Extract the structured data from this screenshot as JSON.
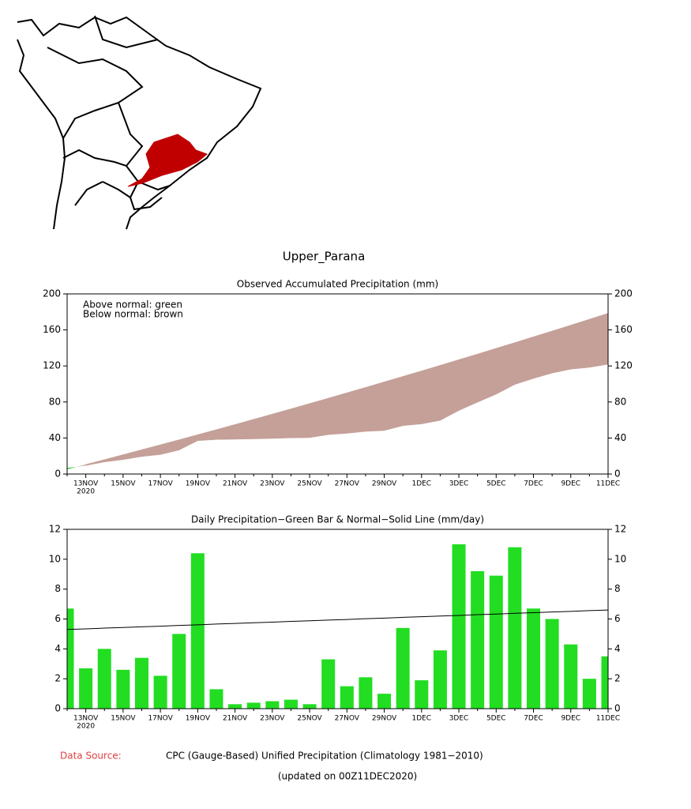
{
  "page_title": "Upper_Parana",
  "footer": {
    "source_label": "Data Source:",
    "source": "CPC (Gauge-Based) Unified Precipitation (Climatology 1981−2010)",
    "updated": "(updated on 00Z11DEC2020)"
  },
  "chart_data": [
    {
      "type": "area",
      "title": "Observed Accumulated Precipitation (mm)",
      "annotations": [
        "Above normal: green",
        "Below normal: brown"
      ],
      "categories": [
        null,
        "13NOV",
        null,
        "15NOV",
        null,
        "17NOV",
        null,
        "19NOV",
        null,
        "21NOV",
        null,
        "23NOV",
        null,
        "25NOV",
        null,
        "27NOV",
        null,
        "29NOV",
        null,
        "1DEC",
        null,
        "3DEC",
        null,
        "5DEC",
        null,
        "7DEC",
        null,
        "9DEC",
        null,
        "11DEC"
      ],
      "x_sublabel": "2020",
      "values": [
        6.7,
        9.4,
        13.4,
        16.0,
        19.4,
        21.6,
        26.6,
        37.0,
        38.3,
        38.6,
        39.0,
        39.5,
        40.1,
        40.4,
        43.7,
        45.2,
        47.3,
        48.3,
        53.7,
        55.6,
        59.5,
        70.5,
        79.7,
        88.6,
        99.4,
        106.1,
        112.1,
        116.4,
        118.4,
        121.9
      ],
      "normal": [
        5.3,
        10.6,
        16.0,
        21.5,
        27.0,
        32.5,
        38.0,
        43.7,
        49.3,
        55.0,
        60.8,
        66.6,
        72.4,
        78.3,
        84.2,
        90.2,
        96.2,
        102.3,
        108.4,
        114.5,
        120.7,
        127.0,
        133.2,
        139.6,
        145.9,
        152.4,
        158.8,
        165.3,
        171.9,
        178.5
      ],
      "above_color": "#22cc22",
      "below_color": "#c4a098",
      "ylim": [
        0,
        200
      ],
      "yticks": [
        0,
        40,
        80,
        120,
        160,
        200
      ]
    },
    {
      "type": "bar",
      "title": "Daily Precipitation−Green Bar & Normal−Solid Line (mm/day)",
      "categories": [
        null,
        "13NOV",
        null,
        "15NOV",
        null,
        "17NOV",
        null,
        "19NOV",
        null,
        "21NOV",
        null,
        "23NOV",
        null,
        "25NOV",
        null,
        "27NOV",
        null,
        "29NOV",
        null,
        "1DEC",
        null,
        "3DEC",
        null,
        "5DEC",
        null,
        "7DEC",
        null,
        "9DEC",
        null,
        "11DEC"
      ],
      "x_sublabel": "2020",
      "values": [
        6.7,
        2.7,
        4.0,
        2.6,
        3.4,
        2.2,
        5.0,
        10.4,
        1.3,
        0.3,
        0.4,
        0.5,
        0.6,
        0.3,
        3.3,
        1.5,
        2.1,
        1.0,
        5.4,
        1.9,
        3.9,
        11.0,
        9.2,
        8.9,
        10.8,
        6.7,
        6.0,
        4.3,
        2.0,
        3.5
      ],
      "normal": [
        5.3,
        5.34,
        5.39,
        5.43,
        5.48,
        5.52,
        5.57,
        5.61,
        5.66,
        5.7,
        5.75,
        5.79,
        5.84,
        5.88,
        5.93,
        5.97,
        6.02,
        6.06,
        6.11,
        6.15,
        6.2,
        6.24,
        6.29,
        6.33,
        6.38,
        6.42,
        6.47,
        6.51,
        6.56,
        6.6
      ],
      "color": "#22dd22",
      "line_color": "#000000",
      "ylim": [
        0,
        12
      ],
      "yticks": [
        0,
        2,
        4,
        6,
        8,
        10,
        12
      ]
    }
  ]
}
